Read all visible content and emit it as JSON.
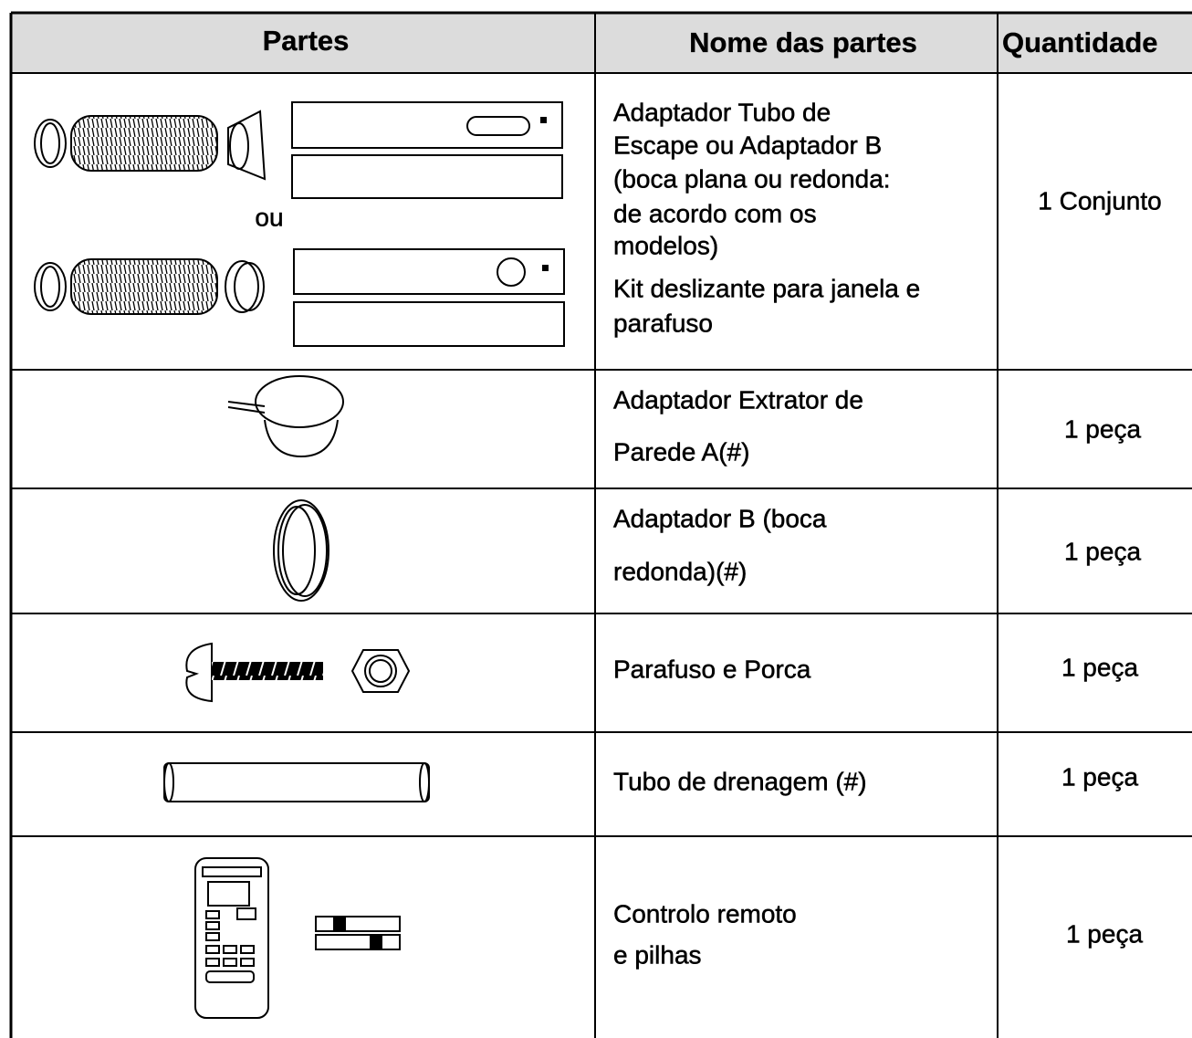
{
  "table": {
    "header": [
      "Partes",
      "Nome das partes",
      "Quantidade"
    ],
    "or_label": "ou",
    "rows": [
      {
        "name": [
          "Adaptador Tubo de",
          "Escape ou Adaptador B",
          "(boca plana ou redonda:",
          "de acordo com os",
          "modelos)",
          "Kit deslizante para janela e",
          "parafuso"
        ],
        "quantity": "1 Conjunto"
      },
      {
        "name": [
          "Adaptador Extrator de",
          "Parede A(#)"
        ],
        "quantity": "1 peça"
      },
      {
        "name": [
          "Adaptador B (boca",
          "redonda)(#)"
        ],
        "quantity": "1 peça"
      },
      {
        "name": [
          "Parafuso e Porca"
        ],
        "quantity": "1 peça"
      },
      {
        "name": [
          "Tubo de drenagem (#)"
        ],
        "quantity": "1 peça"
      },
      {
        "name": [
          "Controlo remoto",
          "e pilhas"
        ],
        "quantity": "1 peça"
      }
    ]
  }
}
